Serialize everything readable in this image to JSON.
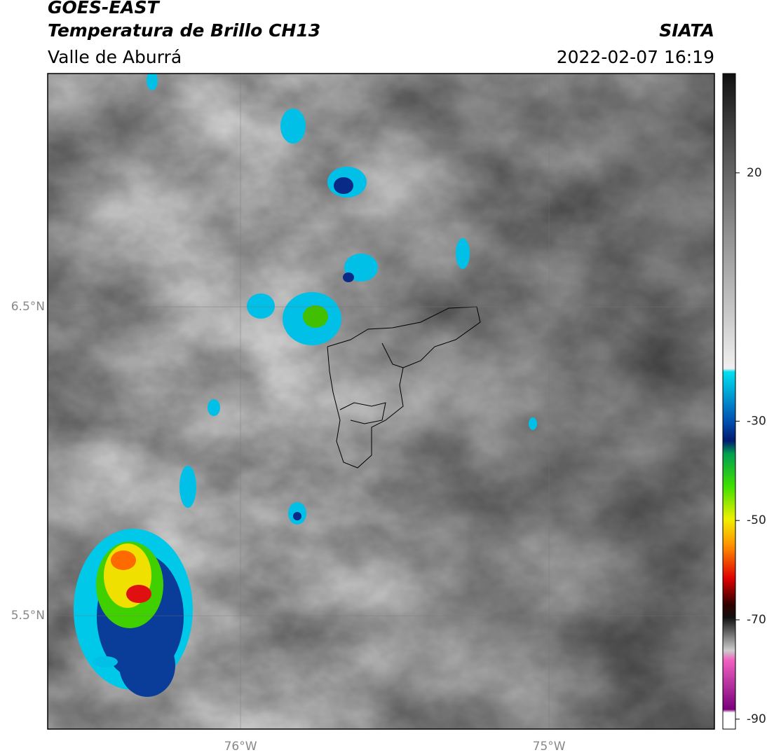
{
  "header": {
    "title": "GOES-EAST",
    "subtitle": "Temperatura de Brillo CH13",
    "region": "Valle de Aburrá",
    "source": "SIATA",
    "timestamp": "2022-02-07 16:19"
  },
  "map": {
    "lonlim": [
      -76.625,
      -74.464
    ],
    "latlim": [
      5.133,
      7.255
    ],
    "lat_ticks": [
      {
        "value": 6.5,
        "label": "6.5°N"
      },
      {
        "value": 5.5,
        "label": "5.5°N"
      }
    ],
    "lon_ticks": [
      {
        "value": -76,
        "label": "76°W"
      },
      {
        "value": -75,
        "label": "75°W"
      }
    ]
  },
  "colorbar": {
    "lim": [
      -92,
      40
    ],
    "ticks": [
      20,
      -30,
      -50,
      -70,
      -90
    ]
  }
}
